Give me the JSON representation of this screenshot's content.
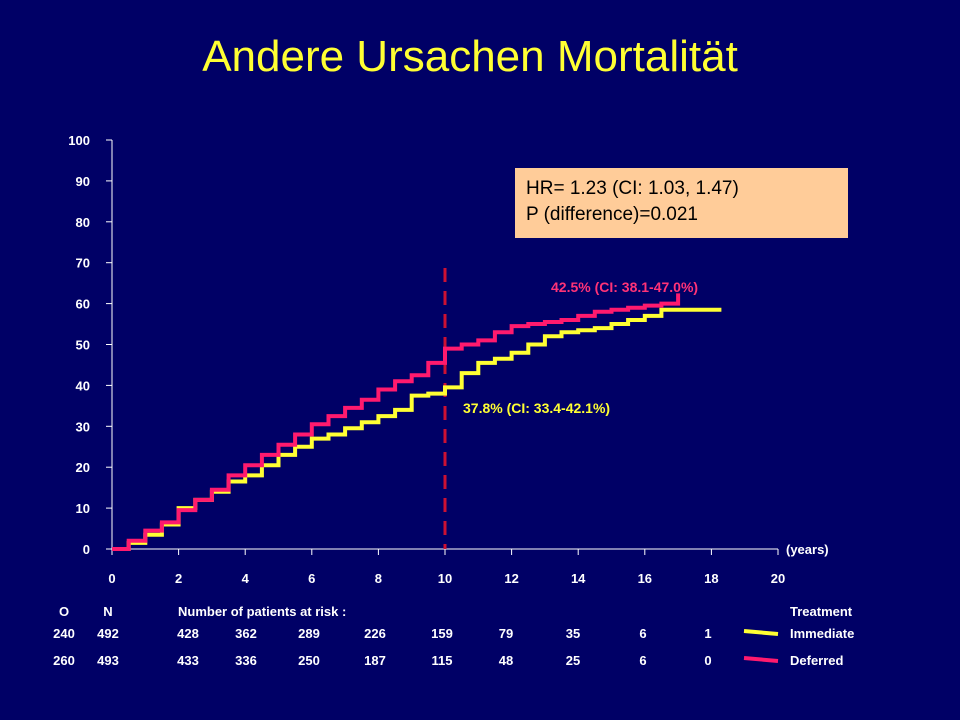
{
  "title": "Andere Ursachen Mortalität",
  "hr_box": {
    "line1": "HR= 1.23 (CI: 1.03, 1.47)",
    "line2": "P (difference)=0.021",
    "background": "#ffcc99"
  },
  "colors": {
    "background": "#000066",
    "title": "#ffff33",
    "immediate": "#ffff33",
    "deferred": "#ff1a6e",
    "reference_line": "#cc1133",
    "deferred_label": "#ff3377",
    "immediate_label": "#ffff33"
  },
  "chart_data": {
    "type": "line",
    "title": "Andere Ursachen Mortalität",
    "xlabel": "(years)",
    "ylabel": "",
    "xlim": [
      0,
      20
    ],
    "ylim": [
      0,
      100
    ],
    "x_ticks": [
      0,
      2,
      4,
      6,
      8,
      10,
      12,
      14,
      16,
      18,
      20
    ],
    "y_ticks": [
      0,
      10,
      20,
      30,
      40,
      50,
      60,
      70,
      80,
      90,
      100
    ],
    "grid": false,
    "reference_line_x": 10,
    "series": [
      {
        "name": "Immediate",
        "color": "#ffff33",
        "x": [
          0,
          0.5,
          1,
          1.5,
          2,
          2.5,
          3,
          3.5,
          4,
          4.5,
          5,
          5.5,
          6,
          6.5,
          7,
          7.5,
          8,
          8.5,
          9,
          9.5,
          10,
          10.5,
          11,
          11.5,
          12,
          12.5,
          13,
          13.5,
          14,
          14.5,
          15,
          15.5,
          16,
          16.5,
          17,
          17.5,
          18,
          18.3
        ],
        "y": [
          0,
          1.5,
          3.5,
          6,
          10,
          12,
          14,
          16.5,
          18,
          20.5,
          23,
          25,
          27,
          28,
          29.5,
          31,
          32.5,
          34,
          37.5,
          38,
          39.5,
          43,
          45.5,
          46.5,
          48,
          50,
          52,
          53,
          53.5,
          54,
          55,
          56,
          57,
          58.5,
          58.5,
          58.5,
          58.5,
          58.5
        ]
      },
      {
        "name": "Deferred",
        "color": "#ff1a6e",
        "x": [
          0,
          0.5,
          1,
          1.5,
          2,
          2.5,
          3,
          3.5,
          4,
          4.5,
          5,
          5.5,
          6,
          6.5,
          7,
          7.5,
          8,
          8.5,
          9,
          9.5,
          10,
          10.5,
          11,
          11.5,
          12,
          12.5,
          13,
          13.5,
          14,
          14.5,
          15,
          15.5,
          16,
          16.5,
          16.8,
          17
        ],
        "y": [
          0,
          2,
          4.5,
          6.5,
          9.5,
          12,
          14.5,
          18,
          20.5,
          23,
          25.5,
          28,
          30.5,
          32.5,
          34.5,
          36.5,
          39,
          41,
          42.5,
          45.5,
          49,
          50,
          51,
          53,
          54.5,
          55,
          55.5,
          56,
          57,
          58,
          58.5,
          59,
          59.5,
          60,
          60,
          62.5
        ]
      }
    ],
    "annotations": [
      {
        "text": "42.5% (CI: 38.1-47.0%)",
        "series": "Deferred"
      },
      {
        "text": "37.8% (CI: 33.4-42.1%)",
        "series": "Immediate"
      }
    ]
  },
  "risk_table": {
    "header_o": "O",
    "header_n": "N",
    "header_title": "Number of patients at risk :",
    "header_treatment": "Treatment",
    "rows": [
      {
        "o": "240",
        "n": "492",
        "counts": [
          "428",
          "362",
          "289",
          "226",
          "159",
          "79",
          "35",
          "6",
          "1"
        ],
        "treatment": "Immediate",
        "color": "#ffff33"
      },
      {
        "o": "260",
        "n": "493",
        "counts": [
          "433",
          "336",
          "250",
          "187",
          "115",
          "48",
          "25",
          "6",
          "0"
        ],
        "treatment": "Deferred",
        "color": "#ff1a6e"
      }
    ]
  }
}
